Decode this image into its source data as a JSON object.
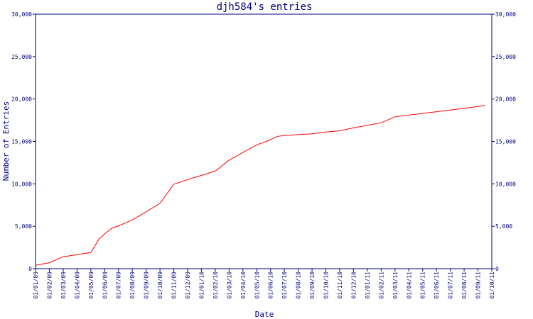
{
  "chart_data": {
    "type": "line",
    "title": "djh584's entries",
    "xlabel": "Date",
    "ylabel": "Number of Entries",
    "ylim": [
      0,
      30000
    ],
    "yticks": [
      0,
      5000,
      10000,
      15000,
      20000,
      25000,
      30000
    ],
    "ytick_labels": [
      "0",
      "5,000",
      "10,000",
      "15,000",
      "20,000",
      "25,000",
      "30,000"
    ],
    "right_axis": true,
    "grid": false,
    "legend": "none",
    "series_color": "#ff0000",
    "axis_color": "#00007f",
    "categories": [
      "01/01/09",
      "01/02/09",
      "01/03/09",
      "01/04/09",
      "01/05/09",
      "01/06/09",
      "01/07/09",
      "01/08/09",
      "01/09/09",
      "01/10/09",
      "01/11/09",
      "01/12/09",
      "01/01/10",
      "01/02/10",
      "01/03/10",
      "01/04/10",
      "01/05/10",
      "01/06/10",
      "01/07/10",
      "01/08/10",
      "01/09/10",
      "01/10/10",
      "01/11/10",
      "01/12/10",
      "01/01/11",
      "01/02/11",
      "01/03/11",
      "01/04/11",
      "01/05/11",
      "01/06/11",
      "01/07/11",
      "01/08/11",
      "01/09/11",
      "01/10/11"
    ],
    "series": [
      {
        "values": [
          [
            0,
            400
          ],
          [
            1,
            700
          ],
          [
            2,
            1400
          ],
          [
            3,
            1650
          ],
          [
            4,
            1900
          ],
          [
            4.6,
            3500
          ],
          [
            5,
            4100
          ],
          [
            5.55,
            4800
          ],
          [
            6,
            5050
          ],
          [
            7,
            5750
          ],
          [
            8,
            6700
          ],
          [
            9,
            7700
          ],
          [
            10,
            9950
          ],
          [
            11,
            10500
          ],
          [
            12,
            11000
          ],
          [
            13,
            11500
          ],
          [
            14,
            12800
          ],
          [
            15,
            13700
          ],
          [
            16,
            14600
          ],
          [
            16.7,
            15000
          ],
          [
            17.5,
            15600
          ],
          [
            18,
            15700
          ],
          [
            19,
            15800
          ],
          [
            20,
            15900
          ],
          [
            21,
            16100
          ],
          [
            22,
            16250
          ],
          [
            23,
            16600
          ],
          [
            24,
            16900
          ],
          [
            25,
            17200
          ],
          [
            26,
            17900
          ],
          [
            27,
            18100
          ],
          [
            28,
            18300
          ],
          [
            29,
            18500
          ],
          [
            30,
            18700
          ],
          [
            31,
            18900
          ],
          [
            32,
            19100
          ],
          [
            32.5,
            19250
          ]
        ]
      }
    ]
  }
}
